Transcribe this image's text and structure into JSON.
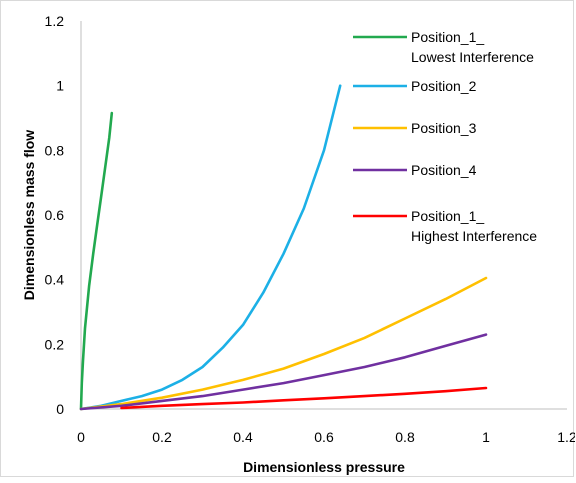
{
  "chart_data": {
    "type": "line",
    "title": "",
    "xlabel": "Dimensionless pressure",
    "ylabel": "Dimensionless mass flow",
    "xlim": [
      0,
      1.2
    ],
    "ylim": [
      0,
      1.2
    ],
    "xticks": [
      "0",
      "0.2",
      "0.4",
      "0.6",
      "0.8",
      "1",
      "1.2"
    ],
    "yticks": [
      "0",
      "0.2",
      "0.4",
      "0.6",
      "0.8",
      "1",
      "1.2"
    ],
    "grid": false,
    "legend_position": "top-right",
    "series": [
      {
        "name": "Position_1_Lowest Interference",
        "color": "#22a94f",
        "x": [
          0.0,
          0.002,
          0.005,
          0.01,
          0.02,
          0.03,
          0.04,
          0.05,
          0.06,
          0.07,
          0.076
        ],
        "y": [
          0.0,
          0.08,
          0.15,
          0.25,
          0.38,
          0.48,
          0.57,
          0.66,
          0.75,
          0.84,
          0.915
        ]
      },
      {
        "name": "Position_2",
        "color": "#1cb0e6",
        "x": [
          0.0,
          0.05,
          0.1,
          0.15,
          0.2,
          0.25,
          0.3,
          0.35,
          0.4,
          0.45,
          0.5,
          0.55,
          0.6,
          0.64
        ],
        "y": [
          0.0,
          0.01,
          0.025,
          0.04,
          0.06,
          0.09,
          0.13,
          0.19,
          0.26,
          0.36,
          0.48,
          0.62,
          0.8,
          1.0
        ]
      },
      {
        "name": "Position_3",
        "color": "#ffc000",
        "x": [
          0.0,
          0.1,
          0.2,
          0.3,
          0.4,
          0.5,
          0.6,
          0.7,
          0.8,
          0.9,
          1.0
        ],
        "y": [
          0.0,
          0.015,
          0.035,
          0.06,
          0.09,
          0.125,
          0.17,
          0.22,
          0.28,
          0.34,
          0.405
        ]
      },
      {
        "name": "Position_4",
        "color": "#7030a0",
        "x": [
          0.0,
          0.1,
          0.2,
          0.3,
          0.4,
          0.5,
          0.6,
          0.7,
          0.8,
          0.9,
          1.0
        ],
        "y": [
          0.0,
          0.01,
          0.025,
          0.04,
          0.06,
          0.08,
          0.105,
          0.13,
          0.16,
          0.195,
          0.23
        ]
      },
      {
        "name": "Position_1_Highest Interference",
        "color": "#ff0000",
        "x": [
          0.1,
          0.2,
          0.3,
          0.4,
          0.5,
          0.6,
          0.7,
          0.8,
          0.9,
          1.0
        ],
        "y": [
          0.003,
          0.01,
          0.015,
          0.02,
          0.027,
          0.033,
          0.04,
          0.047,
          0.055,
          0.065
        ]
      }
    ]
  }
}
